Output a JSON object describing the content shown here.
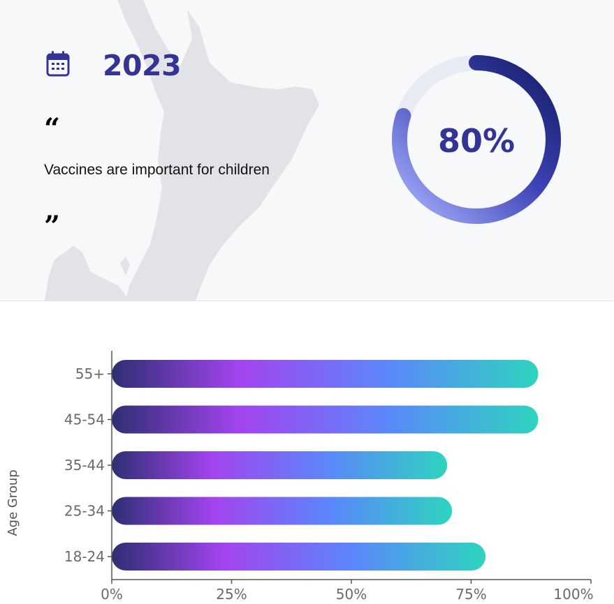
{
  "header": {
    "year": "2023",
    "quote_open": "“",
    "quote_text": "Vaccines are important for children",
    "quote_close": "”",
    "percent_value": 80,
    "percent_label": "80%"
  },
  "icons": {
    "calendar": "calendar-icon",
    "map": "new-zealand-map"
  },
  "colors": {
    "accent": "#343494",
    "ring_start": "#aab4ff",
    "ring_end": "#141c64",
    "ring_track": "#e8eaf4",
    "bar_gradient": [
      "#2e2f72",
      "#a344f0",
      "#5a88fa",
      "#2ed4bf"
    ]
  },
  "chart_data": {
    "type": "bar",
    "orientation": "horizontal",
    "categories": [
      "55+",
      "45-54",
      "35-44",
      "25-34",
      "18-24"
    ],
    "values": [
      89,
      89,
      70,
      71,
      78
    ],
    "xlim": [
      0,
      100
    ],
    "xticks": [
      "0%",
      "25%",
      "50%",
      "75%",
      "100%"
    ],
    "ylabel": "Age Group",
    "xlabel": "",
    "grid": false
  }
}
